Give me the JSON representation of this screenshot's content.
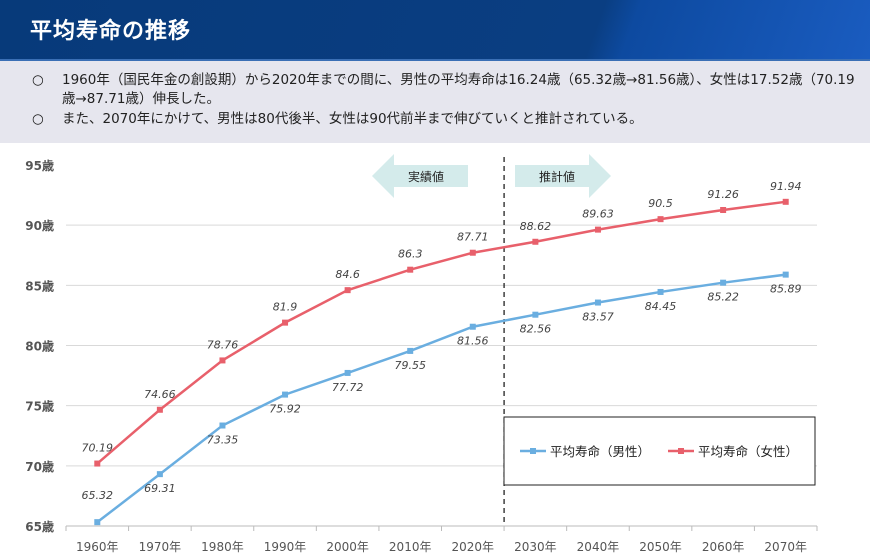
{
  "header": {
    "title": "平均寿命の推移"
  },
  "summary": {
    "bullets": [
      {
        "marker": "○",
        "text": "1960年（国民年金の創設期）から2020年までの間に、男性の平均寿命は16.24歳（65.32歳→81.56歳）、女性は17.52歳（70.19歳→87.71歳）伸長した。"
      },
      {
        "marker": "○",
        "text": "また、2070年にかけて、男性は80代後半、女性は90代前半まで伸びていくと推計されている。"
      }
    ]
  },
  "chart_data": {
    "type": "line",
    "categories": [
      "1960年",
      "1970年",
      "1980年",
      "1990年",
      "2000年",
      "2010年",
      "2020年",
      "2030年",
      "2040年",
      "2050年",
      "2060年",
      "2070年"
    ],
    "ylim": [
      65,
      95
    ],
    "yticks": [
      65,
      70,
      75,
      80,
      85,
      90,
      95
    ],
    "ytick_labels": [
      "65歳",
      "70歳",
      "75歳",
      "80歳",
      "85歳",
      "90歳",
      "95歳"
    ],
    "grid": true,
    "legend": "bottom-right",
    "annotations": {
      "actual": "実績値",
      "projected": "推計値",
      "divider_after": "2020年"
    },
    "series": [
      {
        "name": "平均寿命（男性）",
        "color": "#6aaee0",
        "values": [
          65.32,
          69.31,
          73.35,
          75.92,
          77.72,
          79.55,
          81.56,
          82.56,
          83.57,
          84.45,
          85.22,
          85.89
        ],
        "labels": [
          "65.32",
          "69.31",
          "73.35",
          "75.92",
          "77.72",
          "79.55",
          "81.56",
          "82.56",
          "83.57",
          "84.45",
          "85.22",
          "85.89"
        ]
      },
      {
        "name": "平均寿命（女性）",
        "color": "#e8606b",
        "values": [
          70.19,
          74.66,
          78.76,
          81.9,
          84.6,
          86.3,
          87.71,
          88.62,
          89.63,
          90.5,
          91.26,
          91.94
        ],
        "labels": [
          "70.19",
          "74.66",
          "78.76",
          "81.9",
          "84.6",
          "86.3",
          "87.71",
          "88.62",
          "89.63",
          "90.5",
          "91.26",
          "91.94"
        ]
      }
    ]
  }
}
